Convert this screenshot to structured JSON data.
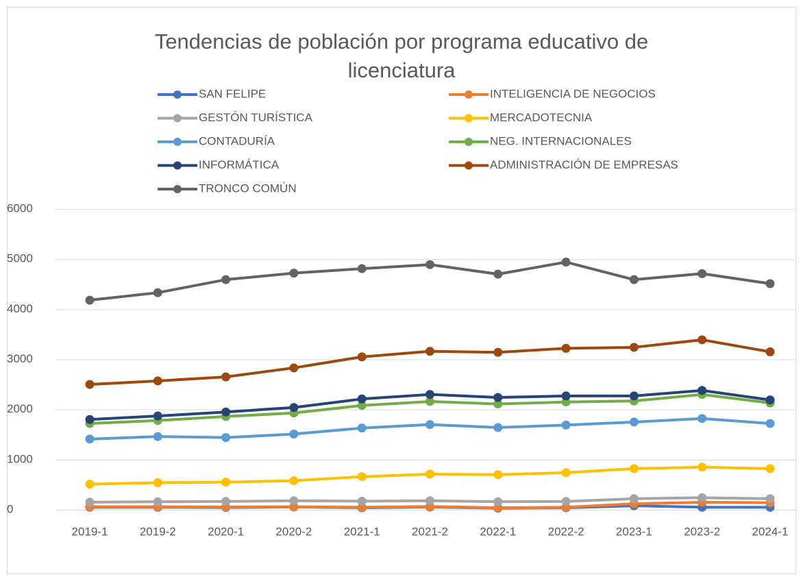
{
  "chart_data": {
    "type": "line",
    "title": "Tendencias de población por programa educativo de licenciatura",
    "categories": [
      "2019-1",
      "2019-2",
      "2020-1",
      "2020-2",
      "2021-1",
      "2021-2",
      "2022-1",
      "2022-2",
      "2023-1",
      "2023-2",
      "2024-1"
    ],
    "series": [
      {
        "name": "SAN FELIPE",
        "color": "#4472c4",
        "values": [
          50,
          50,
          45,
          55,
          40,
          55,
          30,
          40,
          80,
          50,
          50
        ]
      },
      {
        "name": "INTELIGENCIA DE NEGOCIOS",
        "color": "#ed7d31",
        "values": [
          60,
          60,
          55,
          60,
          50,
          65,
          40,
          50,
          120,
          150,
          140
        ]
      },
      {
        "name": "GESTÓN TURÍSTICA",
        "color": "#a5a5a5",
        "values": [
          150,
          160,
          165,
          180,
          170,
          180,
          160,
          165,
          220,
          240,
          220
        ]
      },
      {
        "name": "MERCADOTECNIA",
        "color": "#ffc000",
        "values": [
          510,
          540,
          550,
          580,
          660,
          710,
          700,
          740,
          820,
          850,
          820
        ]
      },
      {
        "name": "CONTADURÍA",
        "color": "#5b9bd5",
        "values": [
          1410,
          1460,
          1440,
          1510,
          1630,
          1700,
          1640,
          1690,
          1750,
          1820,
          1720
        ]
      },
      {
        "name": "NEG.  INTERNACIONALES",
        "color": "#70ad47",
        "values": [
          1720,
          1780,
          1860,
          1930,
          2080,
          2160,
          2110,
          2150,
          2170,
          2300,
          2130
        ]
      },
      {
        "name": "INFORMÁTICA",
        "color": "#264478",
        "values": [
          1800,
          1870,
          1950,
          2040,
          2210,
          2300,
          2240,
          2270,
          2270,
          2380,
          2190
        ]
      },
      {
        "name": "ADMINISTRACIÓN DE EMPRESAS",
        "color": "#9e480e",
        "values": [
          2500,
          2570,
          2650,
          2830,
          3050,
          3160,
          3140,
          3220,
          3240,
          3390,
          3150
        ]
      },
      {
        "name": "TRONCO COMÚN",
        "color": "#636363",
        "values": [
          4180,
          4330,
          4590,
          4720,
          4810,
          4890,
          4700,
          4940,
          4590,
          4710,
          4510
        ]
      }
    ],
    "ylim": [
      0,
      6000
    ],
    "yticks": [
      0,
      1000,
      2000,
      3000,
      4000,
      5000,
      6000
    ],
    "grid": true,
    "legend": "top"
  }
}
